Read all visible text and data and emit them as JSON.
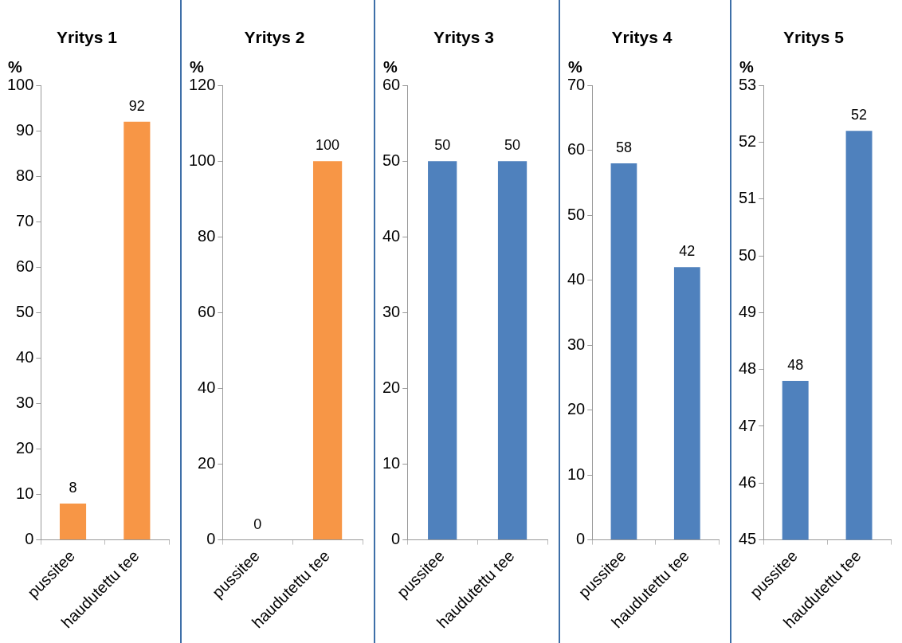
{
  "chart_data": [
    {
      "type": "bar",
      "title": "Yritys 1",
      "ylabel": "%",
      "categories": [
        "pussitee",
        "haudutettu tee"
      ],
      "values": [
        8,
        92
      ],
      "color": "#f79646",
      "ylim": [
        0,
        100
      ],
      "yticks": [
        0,
        10,
        20,
        30,
        40,
        50,
        60,
        70,
        80,
        90,
        100
      ],
      "data_labels": true
    },
    {
      "type": "bar",
      "title": "Yritys 2",
      "ylabel": "%",
      "categories": [
        "pussitee",
        "haudutettu tee"
      ],
      "values": [
        0,
        100
      ],
      "color": "#f79646",
      "ylim": [
        0,
        120
      ],
      "yticks": [
        0,
        20,
        40,
        60,
        80,
        100,
        120
      ],
      "data_labels": true
    },
    {
      "type": "bar",
      "title": "Yritys 3",
      "ylabel": "%",
      "categories": [
        "pussitee",
        "haudutettu tee"
      ],
      "values": [
        50,
        50
      ],
      "color": "#4f81bd",
      "ylim": [
        0,
        60
      ],
      "yticks": [
        0,
        10,
        20,
        30,
        40,
        50,
        60
      ],
      "data_labels": true
    },
    {
      "type": "bar",
      "title": "Yritys 4",
      "ylabel": "%",
      "categories": [
        "pussitee",
        "haudutettu tee"
      ],
      "values": [
        58,
        42
      ],
      "color": "#4f81bd",
      "ylim": [
        0,
        70
      ],
      "yticks": [
        0,
        10,
        20,
        30,
        40,
        50,
        60,
        70
      ],
      "data_labels": true
    },
    {
      "type": "bar",
      "title": "Yritys 5",
      "ylabel": "%",
      "categories": [
        "pussitee",
        "haudutettu tee"
      ],
      "values": [
        47.8,
        52.2
      ],
      "value_labels": [
        "48",
        "52"
      ],
      "color": "#4f81bd",
      "ylim": [
        45,
        53
      ],
      "yticks": [
        45,
        46,
        47,
        48,
        49,
        50,
        51,
        52,
        53
      ]
    }
  ]
}
